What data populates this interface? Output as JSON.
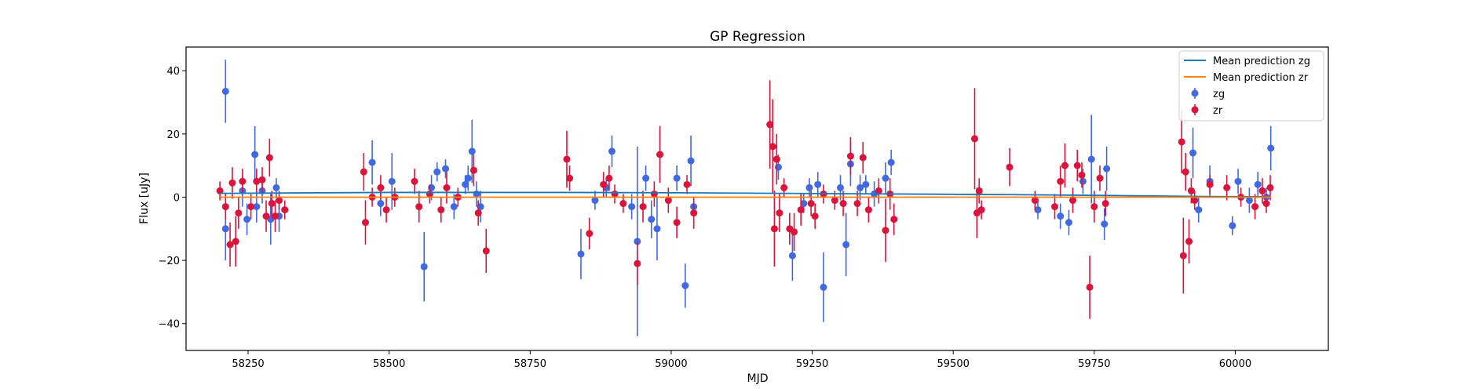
{
  "chart_data": {
    "type": "scatter",
    "title": "GP Regression",
    "xlabel": "MJD",
    "ylabel": "Flux [uJy]",
    "xlim": [
      58140,
      60165
    ],
    "ylim": [
      -48.5,
      47.5
    ],
    "x_ticks": [
      58250,
      58500,
      58750,
      59000,
      59250,
      59500,
      59750,
      60000
    ],
    "y_ticks": [
      -40,
      -20,
      0,
      20,
      40
    ],
    "grid": false,
    "legend_position": "top-right",
    "legend": [
      {
        "label": "Mean prediction zg",
        "kind": "line",
        "color": "#1f77b4"
      },
      {
        "label": "Mean prediction zr",
        "kind": "line",
        "color": "#ff7f0e"
      },
      {
        "label": "zg",
        "kind": "errorbar",
        "color": "#4169e1"
      },
      {
        "label": "zr",
        "kind": "errorbar",
        "color": "#dc143c"
      }
    ],
    "lines": [
      {
        "name": "Mean prediction zg",
        "color": "#1f77b4",
        "x": [
          58200,
          58500,
          58800,
          59000,
          59200,
          59400,
          59600,
          59800,
          59950,
          60063
        ],
        "y": [
          1.2,
          1.5,
          1.5,
          1.4,
          1.2,
          1.0,
          0.8,
          0.5,
          0.2,
          0.1
        ]
      },
      {
        "name": "Mean prediction zr",
        "color": "#ff7f0e",
        "x": [
          58200,
          60063
        ],
        "y": [
          0.0,
          0.0
        ]
      }
    ],
    "series": [
      {
        "name": "zg",
        "color": "#4169e1",
        "points": [
          [
            58210,
            -10,
            10
          ],
          [
            58210,
            33.5,
            10
          ],
          [
            58240,
            2,
            5
          ],
          [
            58248,
            -7,
            5
          ],
          [
            58262,
            13.5,
            9
          ],
          [
            58265,
            -3,
            5
          ],
          [
            58275,
            2,
            4
          ],
          [
            58290,
            -7,
            8
          ],
          [
            58300,
            3,
            3
          ],
          [
            58305,
            -6,
            5
          ],
          [
            58470,
            11,
            7
          ],
          [
            58485,
            -2,
            4
          ],
          [
            58505,
            5,
            9
          ],
          [
            58562,
            -22,
            11
          ],
          [
            58575,
            3,
            4
          ],
          [
            58585,
            8,
            3
          ],
          [
            58600,
            9,
            3
          ],
          [
            58615,
            -3,
            4
          ],
          [
            58635,
            4,
            3
          ],
          [
            58640,
            6,
            4
          ],
          [
            58647,
            14.5,
            10
          ],
          [
            58655,
            1,
            4
          ],
          [
            58662,
            -3,
            5
          ],
          [
            58840,
            -18,
            8
          ],
          [
            58865,
            -1,
            3
          ],
          [
            58885,
            3,
            3
          ],
          [
            58895,
            14.5,
            5
          ],
          [
            58930,
            -3,
            4
          ],
          [
            58940,
            -14,
            30
          ],
          [
            58955,
            6,
            4
          ],
          [
            58965,
            -7,
            6
          ],
          [
            58975,
            -10,
            10
          ],
          [
            59010,
            6,
            4
          ],
          [
            59025,
            -28,
            7
          ],
          [
            59035,
            11.5,
            8
          ],
          [
            59040,
            -3,
            3
          ],
          [
            59190,
            9.5,
            4
          ],
          [
            59215,
            -18.5,
            8
          ],
          [
            59235,
            -2,
            3
          ],
          [
            59245,
            3,
            3
          ],
          [
            59260,
            4,
            4
          ],
          [
            59270,
            -28.5,
            11
          ],
          [
            59300,
            3,
            4
          ],
          [
            59310,
            -15,
            10
          ],
          [
            59318,
            10.5,
            7
          ],
          [
            59335,
            3,
            4
          ],
          [
            59345,
            4,
            3
          ],
          [
            59360,
            1,
            4
          ],
          [
            59380,
            6,
            5
          ],
          [
            59390,
            11,
            4
          ],
          [
            59650,
            -4,
            3
          ],
          [
            59690,
            -6,
            4
          ],
          [
            59705,
            -8,
            4
          ],
          [
            59730,
            5,
            4
          ],
          [
            59745,
            12,
            14
          ],
          [
            59768,
            -8.5,
            5
          ],
          [
            59772,
            9,
            7
          ],
          [
            59925,
            14,
            8
          ],
          [
            59935,
            -4,
            4
          ],
          [
            59955,
            5,
            5
          ],
          [
            59995,
            -9,
            3
          ],
          [
            60005,
            5,
            4
          ],
          [
            60025,
            -1,
            4
          ],
          [
            60040,
            4,
            4
          ],
          [
            60055,
            0,
            3
          ],
          [
            60063,
            15.5,
            7
          ]
        ]
      },
      {
        "name": "zr",
        "color": "#dc143c",
        "points": [
          [
            58200,
            2,
            3
          ],
          [
            58210,
            -3,
            4
          ],
          [
            58218,
            -15,
            7
          ],
          [
            58222,
            4.5,
            5
          ],
          [
            58228,
            -14,
            8
          ],
          [
            58233,
            -5,
            5
          ],
          [
            58240,
            5,
            4
          ],
          [
            58255,
            -3,
            4
          ],
          [
            58265,
            5,
            4
          ],
          [
            58275,
            5.5,
            4
          ],
          [
            58282,
            -6,
            5
          ],
          [
            58288,
            12.5,
            6
          ],
          [
            58292,
            -2,
            4
          ],
          [
            58298,
            -6,
            5
          ],
          [
            58305,
            -1,
            3
          ],
          [
            58315,
            -4,
            3
          ],
          [
            58455,
            8,
            6
          ],
          [
            58458,
            -8,
            7
          ],
          [
            58470,
            0,
            3
          ],
          [
            58485,
            3,
            4
          ],
          [
            58495,
            -4,
            4
          ],
          [
            58510,
            0,
            3
          ],
          [
            58545,
            5,
            4
          ],
          [
            58553,
            -3,
            5
          ],
          [
            58572,
            1,
            3
          ],
          [
            58592,
            -4,
            4
          ],
          [
            58602,
            3,
            5
          ],
          [
            58622,
            0,
            3
          ],
          [
            58650,
            8.5,
            5
          ],
          [
            58658,
            -5,
            4
          ],
          [
            58672,
            -17,
            7
          ],
          [
            58815,
            12,
            9
          ],
          [
            58820,
            6,
            4
          ],
          [
            58855,
            -11.5,
            5
          ],
          [
            58880,
            4,
            4
          ],
          [
            58890,
            6,
            4
          ],
          [
            58900,
            1,
            3
          ],
          [
            58915,
            -2,
            3
          ],
          [
            58940,
            -21,
            7
          ],
          [
            58950,
            -3,
            5
          ],
          [
            58970,
            1,
            4
          ],
          [
            58980,
            13.5,
            9
          ],
          [
            58995,
            -1,
            4
          ],
          [
            59010,
            -8,
            5
          ],
          [
            59028,
            4,
            3
          ],
          [
            59040,
            -5,
            5
          ],
          [
            59175,
            23,
            14
          ],
          [
            59180,
            16,
            15
          ],
          [
            59183,
            -10,
            12
          ],
          [
            59187,
            12,
            8
          ],
          [
            59192,
            -5,
            6
          ],
          [
            59200,
            3,
            3
          ],
          [
            59210,
            -10,
            5
          ],
          [
            59218,
            -11,
            6
          ],
          [
            59230,
            -4,
            5
          ],
          [
            59248,
            -2,
            4
          ],
          [
            59255,
            -6,
            4
          ],
          [
            59270,
            1,
            3
          ],
          [
            59290,
            -1,
            3
          ],
          [
            59305,
            -2,
            4
          ],
          [
            59318,
            13,
            6
          ],
          [
            59330,
            -2,
            4
          ],
          [
            59340,
            12.5,
            5
          ],
          [
            59350,
            -4,
            4
          ],
          [
            59368,
            2,
            4
          ],
          [
            59380,
            -10.5,
            10
          ],
          [
            59388,
            1,
            5
          ],
          [
            59395,
            -7,
            5
          ],
          [
            59538,
            18.5,
            16
          ],
          [
            59542,
            -5,
            8
          ],
          [
            59546,
            2,
            4
          ],
          [
            59550,
            -4,
            3
          ],
          [
            59600,
            9.5,
            6
          ],
          [
            59645,
            -1,
            3
          ],
          [
            59680,
            -3,
            4
          ],
          [
            59690,
            5,
            5
          ],
          [
            59698,
            10,
            7
          ],
          [
            59712,
            -1,
            4
          ],
          [
            59720,
            10,
            5
          ],
          [
            59728,
            7,
            4
          ],
          [
            59742,
            -28.5,
            10
          ],
          [
            59750,
            -3,
            5
          ],
          [
            59760,
            6,
            4
          ],
          [
            59770,
            -2,
            4
          ],
          [
            59905,
            17.5,
            10
          ],
          [
            59908,
            -18.5,
            12
          ],
          [
            59912,
            8,
            6
          ],
          [
            59918,
            -14,
            7
          ],
          [
            59922,
            2,
            4
          ],
          [
            59928,
            -1,
            3
          ],
          [
            59955,
            4,
            3
          ],
          [
            59985,
            3,
            4
          ],
          [
            60010,
            0,
            3
          ],
          [
            60035,
            -3,
            4
          ],
          [
            60048,
            2,
            4
          ],
          [
            60055,
            -2,
            3
          ],
          [
            60062,
            3,
            4
          ]
        ]
      }
    ]
  }
}
